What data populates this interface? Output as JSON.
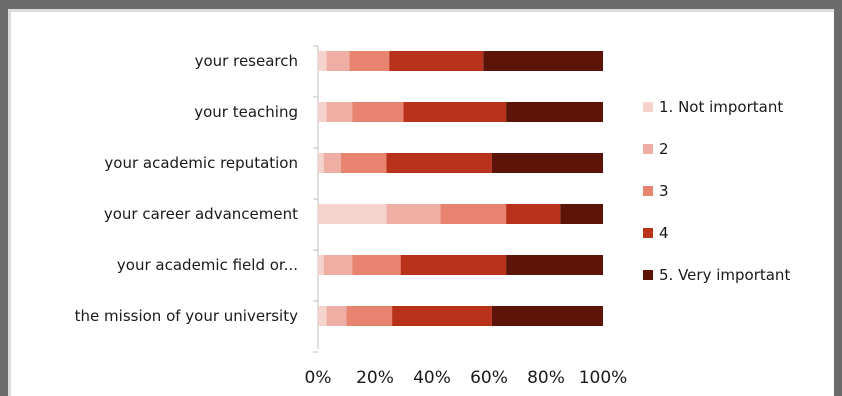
{
  "chart_data": {
    "type": "bar",
    "orientation": "horizontal",
    "stacked": "percent",
    "categories": [
      "your research",
      "your teaching",
      "your academic reputation",
      "your career advancement",
      "your academic field or...",
      "the mission of your university"
    ],
    "series": [
      {
        "name": "1. Not important",
        "color": "#f5d3cd",
        "values": [
          3,
          3,
          2,
          24,
          2,
          3
        ]
      },
      {
        "name": "2",
        "color": "#eeaea3",
        "values": [
          8,
          9,
          6,
          19,
          10,
          7
        ]
      },
      {
        "name": "3",
        "color": "#e8836f",
        "values": [
          14,
          18,
          16,
          23,
          17,
          16
        ]
      },
      {
        "name": "4",
        "color": "#b8321b",
        "values": [
          33,
          36,
          37,
          19,
          37,
          35
        ]
      },
      {
        "name": "5. Very important",
        "color": "#5c1308",
        "values": [
          42,
          34,
          39,
          15,
          34,
          39
        ]
      }
    ],
    "xticks": [
      "0%",
      "20%",
      "40%",
      "60%",
      "80%",
      "100%"
    ],
    "xlim": [
      0,
      100
    ],
    "legend_position": "right",
    "grid": false
  }
}
